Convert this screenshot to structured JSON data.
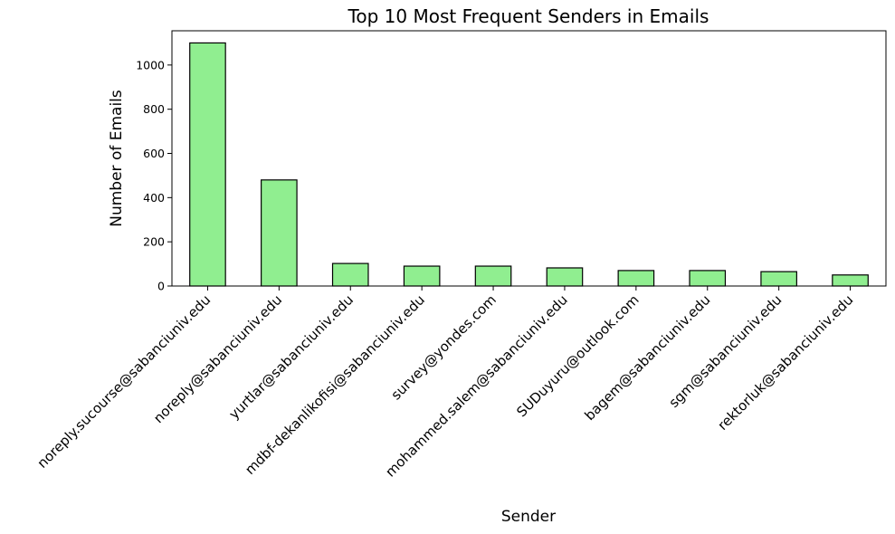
{
  "chart_data": {
    "type": "bar",
    "title": "Top 10 Most Frequent Senders in Emails",
    "xlabel": "Sender",
    "ylabel": "Number of Emails",
    "categories": [
      "noreply.sucourse@sabanciuniv.edu",
      "noreply@sabanciuniv.edu",
      "yurtlar@sabanciuniv.edu",
      "mdbf-dekanlikofisi@sabanciuniv.edu",
      "survey@yondes.com",
      "mohammed.salem@sabanciuniv.edu",
      "SUDuyuru@outlook.com",
      "bagem@sabanciuniv.edu",
      "sgm@sabanciuniv.edu",
      "rektorluk@sabanciuniv.edu"
    ],
    "values": [
      1100,
      480,
      102,
      90,
      90,
      82,
      70,
      70,
      65,
      50
    ],
    "ylim": [
      0,
      1155
    ],
    "yticks": [
      0,
      200,
      400,
      600,
      800,
      1000
    ],
    "grid": false,
    "legend": "none",
    "bar_color": "#90ee90",
    "edge_color": "#000000"
  }
}
